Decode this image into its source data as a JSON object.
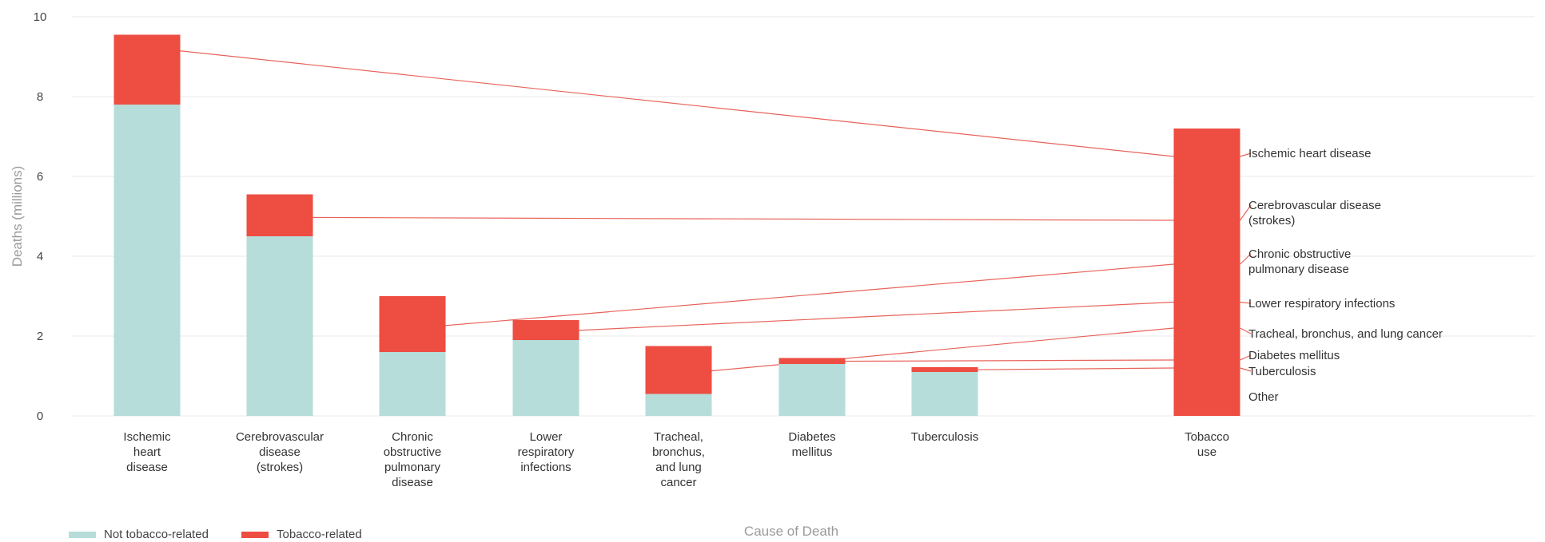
{
  "chart_data": {
    "type": "bar",
    "stacked": true,
    "xlabel": "Cause of Death",
    "ylabel": "Deaths (millions)",
    "ylim": [
      0,
      10
    ],
    "yticks": [
      0,
      2,
      4,
      6,
      8,
      10
    ],
    "grid": true,
    "legend_position": "bottom-left",
    "categories": [
      [
        "Ischemic",
        "heart",
        "disease"
      ],
      [
        "Cerebrovascular",
        "disease",
        "(strokes)"
      ],
      [
        "Chronic",
        "obstructive",
        "pulmonary",
        "disease"
      ],
      [
        "Lower",
        "respiratory",
        "infections"
      ],
      [
        "Tracheal,",
        "bronchus,",
        "and lung",
        "cancer"
      ],
      [
        "Diabetes",
        "mellitus"
      ],
      [
        "Tuberculosis"
      ]
    ],
    "series": [
      {
        "name": "Not tobacco-related",
        "color": "#b6ddd9",
        "values": [
          7.8,
          4.5,
          1.6,
          1.9,
          0.55,
          1.3,
          1.1
        ]
      },
      {
        "name": "Tobacco-related",
        "color": "#ee4d42",
        "values": [
          1.75,
          1.05,
          1.4,
          0.5,
          1.2,
          0.15,
          0.12
        ]
      }
    ],
    "tobacco_bar": {
      "label": [
        "Tobacco",
        "use"
      ],
      "total": 7.2,
      "color": "#ee4d42",
      "segments": [
        {
          "label": [
            "Ischemic heart disease"
          ],
          "y": 6.5
        },
        {
          "label": [
            "Cerebrovascular disease",
            "(strokes)"
          ],
          "y": 4.9
        },
        {
          "label": [
            "Chronic obstructive",
            "pulmonary disease"
          ],
          "y": 3.8
        },
        {
          "label": [
            "Lower respiratory infections"
          ],
          "y": 2.85
        },
        {
          "label": [
            "Tracheal, bronchus, and lung cancer"
          ],
          "y": 2.2
        },
        {
          "label": [
            "Diabetes mellitus"
          ],
          "y": 1.4
        },
        {
          "label": [
            "Tuberculosis"
          ],
          "y": 1.2
        },
        {
          "label": [
            "Other"
          ],
          "y": null
        }
      ]
    },
    "connector_color": "#e8635a"
  }
}
